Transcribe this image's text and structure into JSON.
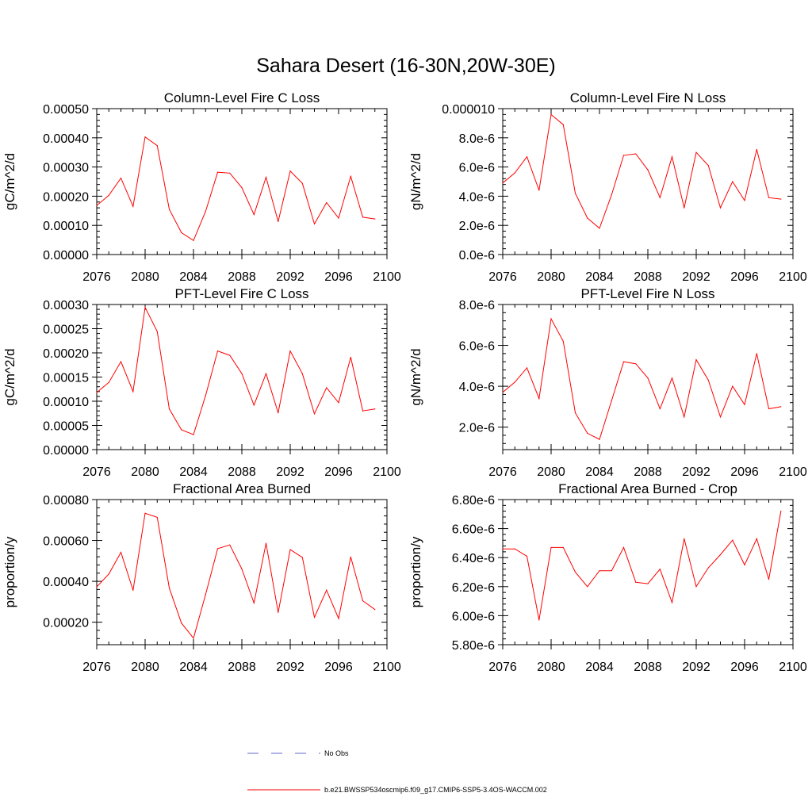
{
  "page_title": "Sahara Desert (16-30N,20W-30E)",
  "series_color": "#ff0000",
  "obs_color": "#6666cc",
  "legend": {
    "obs_label": "No Obs",
    "model_label": "b.e21.BWSSP534oscmip6.f09_g17.CMIP6-SSP5-3.4OS-WACCM.002"
  },
  "chart_data": [
    {
      "type": "line",
      "title": "Column-Level Fire C Loss",
      "ylabel": "gC/m^2/d",
      "xlim": [
        2076,
        2100
      ],
      "ylim": [
        0,
        0.0005
      ],
      "xticks": [
        2076,
        2080,
        2084,
        2088,
        2092,
        2096,
        2100
      ],
      "yticks": [
        0,
        0.0001,
        0.0002,
        0.0003,
        0.0004,
        0.0005
      ],
      "ytick_labels": [
        "0.00000",
        "0.00010",
        "0.00020",
        "0.00030",
        "0.00040",
        "0.00050"
      ],
      "x": [
        2076,
        2077,
        2078,
        2079,
        2080,
        2081,
        2082,
        2083,
        2084,
        2085,
        2086,
        2087,
        2088,
        2089,
        2090,
        2091,
        2092,
        2093,
        2094,
        2095,
        2096,
        2097,
        2098,
        2099
      ],
      "values": [
        0.000168,
        0.000203,
        0.000262,
        0.000165,
        0.000403,
        0.000373,
        0.000155,
        7.5e-05,
        4.8e-05,
        0.000148,
        0.000282,
        0.000279,
        0.000229,
        0.000137,
        0.000265,
        0.000113,
        0.000286,
        0.000244,
        0.000105,
        0.000178,
        0.000125,
        0.000268,
        0.000128,
        0.000122
      ]
    },
    {
      "type": "line",
      "title": "Column-Level Fire N Loss",
      "ylabel": "gN/m^2/d",
      "xlim": [
        2076,
        2100
      ],
      "ylim": [
        0,
        1e-05
      ],
      "xticks": [
        2076,
        2080,
        2084,
        2088,
        2092,
        2096,
        2100
      ],
      "yticks": [
        0,
        2e-06,
        4e-06,
        6e-06,
        8e-06,
        1e-05
      ],
      "ytick_labels": [
        "0.0e-6",
        "2.0e-6",
        "4.0e-6",
        "6.0e-6",
        "8.0e-6",
        "0.000010"
      ],
      "x": [
        2076,
        2077,
        2078,
        2079,
        2080,
        2081,
        2082,
        2083,
        2084,
        2085,
        2086,
        2087,
        2088,
        2089,
        2090,
        2091,
        2092,
        2093,
        2094,
        2095,
        2096,
        2097,
        2098,
        2099
      ],
      "values": [
        4.9e-06,
        5.6e-06,
        6.7e-06,
        4.4e-06,
        9.6e-06,
        8.9e-06,
        4.2e-06,
        2.5e-06,
        1.8e-06,
        4.1e-06,
        6.8e-06,
        6.9e-06,
        5.8e-06,
        3.9e-06,
        6.7e-06,
        3.2e-06,
        7e-06,
        6.1e-06,
        3.2e-06,
        5e-06,
        3.7e-06,
        7.2e-06,
        3.9e-06,
        3.8e-06
      ]
    },
    {
      "type": "line",
      "title": "PFT-Level Fire C Loss",
      "ylabel": "gC/m^2/d",
      "xlim": [
        2076,
        2100
      ],
      "ylim": [
        0,
        0.0003
      ],
      "xticks": [
        2076,
        2080,
        2084,
        2088,
        2092,
        2096,
        2100
      ],
      "yticks": [
        0,
        5e-05,
        0.0001,
        0.00015,
        0.0002,
        0.00025,
        0.0003
      ],
      "ytick_labels": [
        "0.00000",
        "0.00005",
        "0.00010",
        "0.00015",
        "0.00020",
        "0.00025",
        "0.00030"
      ],
      "x": [
        2076,
        2077,
        2078,
        2079,
        2080,
        2081,
        2082,
        2083,
        2084,
        2085,
        2086,
        2087,
        2088,
        2089,
        2090,
        2091,
        2092,
        2093,
        2094,
        2095,
        2096,
        2097,
        2098,
        2099
      ],
      "values": [
        0.000118,
        0.000139,
        0.000182,
        0.00012,
        0.000294,
        0.000244,
        8.4e-05,
        4.1e-05,
        3.1e-05,
        0.000112,
        0.000204,
        0.000195,
        0.000157,
        9.2e-05,
        0.000157,
        7.6e-05,
        0.000204,
        0.000157,
        7.4e-05,
        0.000128,
        9.7e-05,
        0.000191,
        8e-05,
        8.4e-05
      ]
    },
    {
      "type": "line",
      "title": "PFT-Level Fire N Loss",
      "ylabel": "gN/m^2/d",
      "xlim": [
        2076,
        2100
      ],
      "ylim": [
        9e-07,
        8e-06
      ],
      "xticks": [
        2076,
        2080,
        2084,
        2088,
        2092,
        2096,
        2100
      ],
      "yticks": [
        2e-06,
        4e-06,
        6e-06,
        8e-06
      ],
      "ytick_labels": [
        "2.0e-6",
        "4.0e-6",
        "6.0e-6",
        "8.0e-6"
      ],
      "x": [
        2076,
        2077,
        2078,
        2079,
        2080,
        2081,
        2082,
        2083,
        2084,
        2085,
        2086,
        2087,
        2088,
        2089,
        2090,
        2091,
        2092,
        2093,
        2094,
        2095,
        2096,
        2097,
        2098,
        2099
      ],
      "values": [
        3.7e-06,
        4.2e-06,
        4.9e-06,
        3.4e-06,
        7.3e-06,
        6.2e-06,
        2.7e-06,
        1.7e-06,
        1.4e-06,
        3.3e-06,
        5.2e-06,
        5.1e-06,
        4.4e-06,
        2.9e-06,
        4.4e-06,
        2.5e-06,
        5.3e-06,
        4.3e-06,
        2.5e-06,
        4e-06,
        3.1e-06,
        5.6e-06,
        2.9e-06,
        3e-06
      ]
    },
    {
      "type": "line",
      "title": "Fractional Area Burned",
      "ylabel": "proportion/y",
      "xlim": [
        2076,
        2100
      ],
      "ylim": [
        9e-05,
        0.0008
      ],
      "xticks": [
        2076,
        2080,
        2084,
        2088,
        2092,
        2096,
        2100
      ],
      "yticks": [
        0.0002,
        0.0004,
        0.0006,
        0.0008
      ],
      "ytick_labels": [
        "0.00020",
        "0.00040",
        "0.00060",
        "0.00080"
      ],
      "x": [
        2076,
        2077,
        2078,
        2079,
        2080,
        2081,
        2082,
        2083,
        2084,
        2085,
        2086,
        2087,
        2088,
        2089,
        2090,
        2091,
        2092,
        2093,
        2094,
        2095,
        2096,
        2097,
        2098,
        2099
      ],
      "values": [
        0.000373,
        0.000436,
        0.000542,
        0.000356,
        0.000733,
        0.000713,
        0.000367,
        0.000196,
        0.000122,
        0.000336,
        0.00056,
        0.000578,
        0.00046,
        0.000294,
        0.000586,
        0.000248,
        0.000555,
        0.000517,
        0.000224,
        0.000357,
        0.000218,
        0.000519,
        0.000305,
        0.000262
      ]
    },
    {
      "type": "line",
      "title": "Fractional Area Burned - Crop",
      "ylabel": "proportion/y",
      "xlim": [
        2076,
        2100
      ],
      "ylim": [
        5.8e-06,
        6.8e-06
      ],
      "xticks": [
        2076,
        2080,
        2084,
        2088,
        2092,
        2096,
        2100
      ],
      "yticks": [
        5.8e-06,
        6e-06,
        6.2e-06,
        6.4e-06,
        6.6e-06,
        6.8e-06
      ],
      "ytick_labels": [
        "5.80e-6",
        "6.00e-6",
        "6.20e-6",
        "6.40e-6",
        "6.60e-6",
        "6.80e-6"
      ],
      "x": [
        2076,
        2077,
        2078,
        2079,
        2080,
        2081,
        2082,
        2083,
        2084,
        2085,
        2086,
        2087,
        2088,
        2089,
        2090,
        2091,
        2092,
        2093,
        2094,
        2095,
        2096,
        2097,
        2098,
        2099
      ],
      "values": [
        6.46e-06,
        6.46e-06,
        6.41e-06,
        5.97e-06,
        6.47e-06,
        6.47e-06,
        6.3e-06,
        6.2e-06,
        6.31e-06,
        6.31e-06,
        6.47e-06,
        6.23e-06,
        6.22e-06,
        6.32e-06,
        6.09e-06,
        6.53e-06,
        6.2e-06,
        6.33e-06,
        6.42e-06,
        6.52e-06,
        6.35e-06,
        6.53e-06,
        6.25e-06,
        6.72e-06
      ]
    }
  ]
}
